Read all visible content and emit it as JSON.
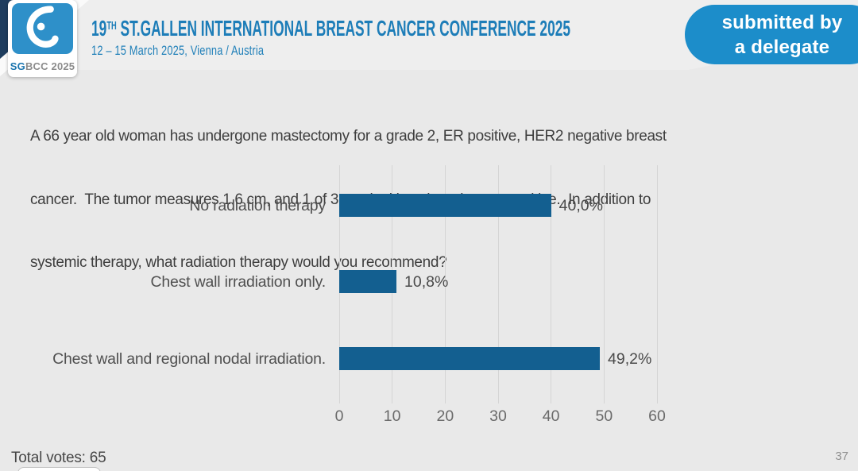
{
  "header": {
    "logo": {
      "sg": "SG",
      "rest": "BCC 2025"
    },
    "title_num": "19",
    "title_sup": "TH",
    "title_rest": " ST.GALLEN INTERNATIONAL BREAST CANCER CONFERENCE 2025",
    "subtitle": "12 – 15 March 2025, Vienna / Austria",
    "badge_line1": "submitted by",
    "badge_line2": "a delegate"
  },
  "question": {
    "lines": [
      "A 66 year old woman has undergone mastectomy for a grade 2, ER positive, HER2 negative breast",
      "cancer.  The tumor measures 1.6 cm, and 1 of 3 sentinel lymph nodes are positive.  In addition to",
      "systemic therapy, what radiation therapy would you recommend?"
    ]
  },
  "chart_data": {
    "type": "bar",
    "orientation": "horizontal",
    "categories": [
      "No radiation therapy",
      "Chest wall irradiation only.",
      "Chest wall and regional nodal irradiation."
    ],
    "values": [
      40.0,
      10.8,
      49.2
    ],
    "value_labels": [
      "40,0%",
      "10,8%",
      "49,2%"
    ],
    "x_ticks": [
      0,
      10,
      20,
      30,
      40,
      50,
      60
    ],
    "xlim": [
      0,
      60
    ],
    "grid": true,
    "legend": false,
    "bar_color": "#135f90",
    "title": "",
    "xlabel": "",
    "ylabel": ""
  },
  "footer": {
    "total_votes": "Total votes: 65",
    "page_number": "37"
  },
  "colors": {
    "background": "#e9e9e9",
    "accent_blue": "#1d7db8",
    "badge_blue": "#1c8dca",
    "logo_blue": "#2e90c9",
    "navy_corner": "#1e3d5e",
    "bar_blue": "#135f90"
  }
}
